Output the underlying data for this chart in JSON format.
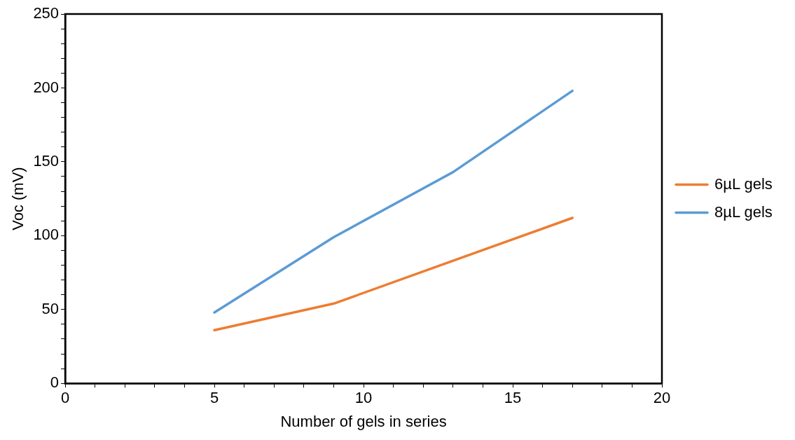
{
  "chart_data": {
    "type": "line",
    "xlabel": "Number of gels in series",
    "ylabel": "Voc (mV)",
    "xlim": [
      0,
      20
    ],
    "ylim": [
      0,
      250
    ],
    "xticks": [
      0,
      {
        "value": 1,
        "label": null
      },
      {
        "value": 2,
        "label": null
      },
      {
        "value": 3,
        "label": null
      },
      {
        "value": 4,
        "label": null
      },
      5,
      {
        "value": 6,
        "label": null
      },
      {
        "value": 7,
        "label": null
      },
      {
        "value": 8,
        "label": null
      },
      {
        "value": 9,
        "label": null
      },
      10,
      {
        "value": 11,
        "label": null
      },
      {
        "value": 12,
        "label": null
      },
      {
        "value": 13,
        "label": null
      },
      {
        "value": 14,
        "label": null
      },
      15,
      {
        "value": 16,
        "label": null
      },
      {
        "value": 17,
        "label": null
      },
      {
        "value": 18,
        "label": null
      },
      {
        "value": 19,
        "label": null
      },
      20
    ],
    "yticks": [
      0,
      {
        "value": 10,
        "label": null
      },
      {
        "value": 20,
        "label": null
      },
      {
        "value": 30,
        "label": null
      },
      {
        "value": 40,
        "label": null
      },
      50,
      {
        "value": 60,
        "label": null
      },
      {
        "value": 70,
        "label": null
      },
      {
        "value": 80,
        "label": null
      },
      {
        "value": 90,
        "label": null
      },
      100,
      {
        "value": 110,
        "label": null
      },
      {
        "value": 120,
        "label": null
      },
      {
        "value": 130,
        "label": null
      },
      {
        "value": 140,
        "label": null
      },
      150,
      {
        "value": 160,
        "label": null
      },
      {
        "value": 170,
        "label": null
      },
      {
        "value": 180,
        "label": null
      },
      {
        "value": 190,
        "label": null
      },
      200,
      {
        "value": 210,
        "label": null
      },
      {
        "value": 220,
        "label": null
      },
      {
        "value": 230,
        "label": null
      },
      {
        "value": 240,
        "label": null
      },
      250
    ],
    "x": [
      5,
      9,
      13,
      17
    ],
    "series": [
      {
        "name": "6µL gels",
        "color": "#ed7d31",
        "values": [
          36,
          54,
          83,
          112
        ]
      },
      {
        "name": "8µL gels",
        "color": "#5b9bd5",
        "values": [
          48,
          99,
          143,
          198
        ]
      }
    ],
    "grid": false,
    "legend": "right",
    "marker": "none",
    "line_style": "solid"
  }
}
